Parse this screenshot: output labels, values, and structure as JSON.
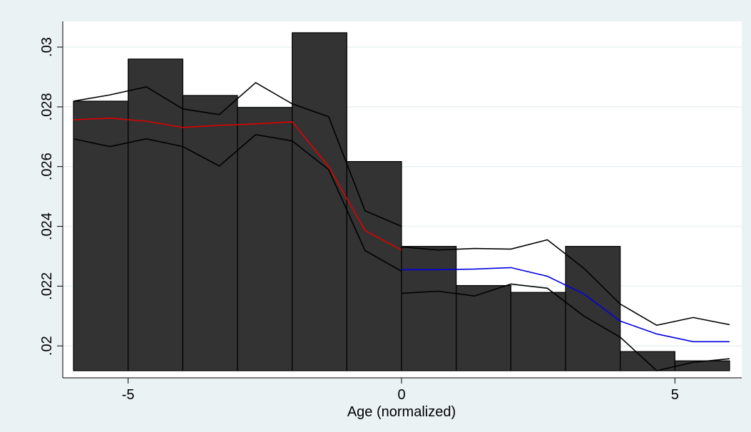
{
  "chart_data": {
    "type": "histogram",
    "xlabel": "Age (normalized)",
    "bins": [
      -6,
      -5,
      -4,
      -3,
      -2,
      -1,
      0,
      1,
      2,
      3,
      4,
      5,
      6
    ],
    "values": [
      0.02819,
      0.0296,
      0.02838,
      0.02798,
      0.03048,
      0.02617,
      0.02333,
      0.02202,
      0.02179,
      0.02333,
      0.01981,
      0.0195
    ],
    "color": "#333333",
    "lines": [
      {
        "color": "#000000",
        "x": [
          -6,
          -5.333,
          -4.667,
          -4,
          -3.333,
          -2.667,
          -2,
          -1.333,
          -0.667,
          0
        ],
        "values": [
          0.02819,
          0.0284,
          0.02867,
          0.02793,
          0.02774,
          0.02881,
          0.0281,
          0.02767,
          0.02452,
          0.024
        ]
      },
      {
        "color": "#000000",
        "x": [
          -6,
          -5.333,
          -4.667,
          -4,
          -3.333,
          -2.667,
          -2,
          -1.333,
          -0.667,
          0
        ],
        "values": [
          0.02693,
          0.02667,
          0.02693,
          0.02667,
          0.02602,
          0.02707,
          0.02686,
          0.0259,
          0.02319,
          0.0225
        ]
      },
      {
        "color": "#e00000",
        "x": [
          -6,
          -5.333,
          -4.667,
          -4,
          -3.333,
          -2.667,
          -2,
          -1.333,
          -0.667,
          0
        ],
        "values": [
          0.02757,
          0.02762,
          0.02752,
          0.02731,
          0.02738,
          0.02743,
          0.0275,
          0.026,
          0.02386,
          0.02321
        ]
      },
      {
        "color": "#000000",
        "x": [
          0,
          0.667,
          1.333,
          2,
          2.667,
          3.333,
          4,
          4.667,
          5.333,
          6
        ],
        "values": [
          0.02331,
          0.02321,
          0.02326,
          0.02324,
          0.02355,
          0.0226,
          0.0214,
          0.02069,
          0.02095,
          0.02071
        ]
      },
      {
        "color": "#000000",
        "x": [
          0,
          0.667,
          1.333,
          2,
          2.667,
          3.333,
          4,
          4.667,
          5.333,
          6
        ],
        "values": [
          0.02176,
          0.02183,
          0.02167,
          0.02207,
          0.02193,
          0.021,
          0.02029,
          0.01917,
          0.01945,
          0.01957
        ]
      },
      {
        "color": "#0000e0",
        "x": [
          0,
          0.667,
          1.333,
          2,
          2.667,
          3.333,
          4,
          4.667,
          5.333,
          6
        ],
        "values": [
          0.02255,
          0.02255,
          0.02257,
          0.02262,
          0.02233,
          0.02174,
          0.02083,
          0.0204,
          0.02014,
          0.02014
        ]
      }
    ],
    "xlim": [
      -6,
      6
    ],
    "ylim": [
      0.01917,
      0.03086
    ],
    "xticks": [
      -5,
      0,
      5
    ],
    "yticks": [
      {
        "value": 0.02,
        "label": ".02"
      },
      {
        "value": 0.022,
        "label": ".022"
      },
      {
        "value": 0.024,
        "label": ".024"
      },
      {
        "value": 0.026,
        "label": ".026"
      },
      {
        "value": 0.028,
        "label": ".028"
      },
      {
        "value": 0.03,
        "label": ".03"
      }
    ],
    "grid": true
  }
}
